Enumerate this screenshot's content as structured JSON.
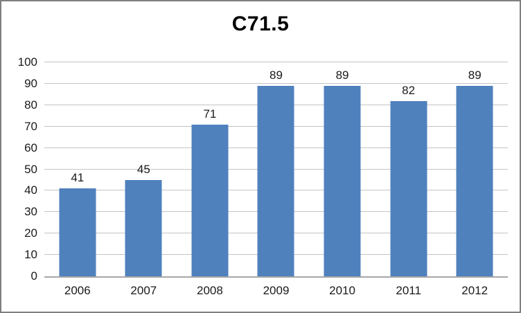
{
  "frame": {
    "background": "#ffffff",
    "border_color": "#7f7f7f"
  },
  "chart_data": {
    "type": "bar",
    "title": "C71.5",
    "categories": [
      "2006",
      "2007",
      "2008",
      "2009",
      "2010",
      "2011",
      "2012"
    ],
    "values": [
      41,
      45,
      71,
      89,
      89,
      82,
      89
    ],
    "data_labels": [
      "41",
      "45",
      "71",
      "89",
      "89",
      "82",
      "89"
    ],
    "xlabel": "",
    "ylabel": "",
    "ylim": [
      0,
      100
    ],
    "ytick_step": 10,
    "ytick_labels": [
      "0",
      "10",
      "20",
      "30",
      "40",
      "50",
      "60",
      "70",
      "80",
      "90",
      "100"
    ],
    "grid": true,
    "legend": "none",
    "colors": {
      "bar_fill": "#4f81bd",
      "gridline": "#c3c3c3",
      "axis_line": "#a6a6a6",
      "text": "#1a1a1a",
      "title_text": "#000000"
    }
  }
}
